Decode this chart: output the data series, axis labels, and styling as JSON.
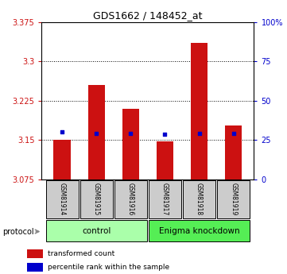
{
  "title": "GDS1662 / 148452_at",
  "categories": [
    "GSM81914",
    "GSM81915",
    "GSM81916",
    "GSM81917",
    "GSM81918",
    "GSM81919"
  ],
  "bar_values": [
    3.15,
    3.255,
    3.21,
    3.148,
    3.335,
    3.178
  ],
  "bar_bottom": 3.075,
  "blue_values": [
    3.165,
    3.162,
    3.162,
    3.161,
    3.162,
    3.162
  ],
  "bar_color": "#cc1111",
  "blue_color": "#0000cc",
  "ylim_left": [
    3.075,
    3.375
  ],
  "ylim_right": [
    0,
    100
  ],
  "yticks_left": [
    3.075,
    3.15,
    3.225,
    3.3,
    3.375
  ],
  "yticks_right": [
    0,
    25,
    50,
    75,
    100
  ],
  "ytick_labels_left": [
    "3.075",
    "3.15",
    "3.225",
    "3.3",
    "3.375"
  ],
  "ytick_labels_right": [
    "0",
    "25",
    "50",
    "75",
    "100%"
  ],
  "hlines": [
    3.15,
    3.225,
    3.3
  ],
  "control_label": "control",
  "treatment_label": "Enigma knockdown",
  "protocol_label": "protocol",
  "legend_bar_label": "transformed count",
  "legend_dot_label": "percentile rank within the sample",
  "control_color": "#aaffaa",
  "treatment_color": "#55ee55",
  "sample_box_color": "#cccccc",
  "bar_width": 0.5,
  "n_control": 3,
  "n_treatment": 3
}
